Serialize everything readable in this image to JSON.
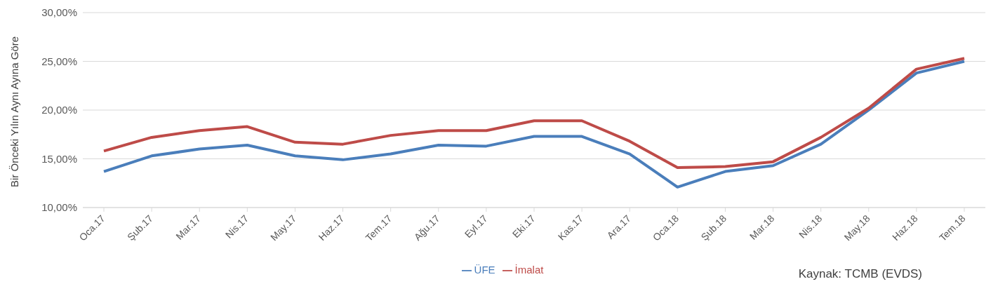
{
  "chart_data": {
    "type": "line",
    "ylabel": "Bir Önceki Yılın Aynı Ayına Göre",
    "categories": [
      "Oca.17",
      "Şub.17",
      "Mar.17",
      "Nis.17",
      "May.17",
      "Haz.17",
      "Tem.17",
      "Ağu.17",
      "Eyl.17",
      "Eki.17",
      "Kas.17",
      "Ara.17",
      "Oca.18",
      "Şub.18",
      "Mar.18",
      "Nis.18",
      "May.18",
      "Haz.18",
      "Tem.18"
    ],
    "series": [
      {
        "name": "ÜFE",
        "color": "#4a7ebb",
        "values": [
          13.7,
          15.3,
          16.0,
          16.4,
          15.3,
          14.9,
          15.5,
          16.4,
          16.3,
          17.3,
          17.3,
          15.5,
          12.1,
          13.7,
          14.3,
          16.5,
          20.0,
          23.8,
          25.0
        ]
      },
      {
        "name": "İmalat",
        "color": "#be4b48",
        "values": [
          15.8,
          17.2,
          17.9,
          18.3,
          16.7,
          16.5,
          17.4,
          17.9,
          17.9,
          18.9,
          18.9,
          16.8,
          14.1,
          14.2,
          14.7,
          17.2,
          20.2,
          24.2,
          25.3
        ]
      }
    ],
    "ylim": [
      10,
      30
    ],
    "yticks": [
      {
        "value": 10,
        "label": "10,00%"
      },
      {
        "value": 15,
        "label": "15,00%"
      },
      {
        "value": 20,
        "label": "20,00%"
      },
      {
        "value": 25,
        "label": "25,00%"
      },
      {
        "value": 30,
        "label": "30,00%"
      }
    ],
    "grid": "y",
    "legend": "bottom",
    "marker": "none",
    "line_style": "solid",
    "annotations": [
      "Kaynak: TCMB (EVDS)"
    ]
  }
}
